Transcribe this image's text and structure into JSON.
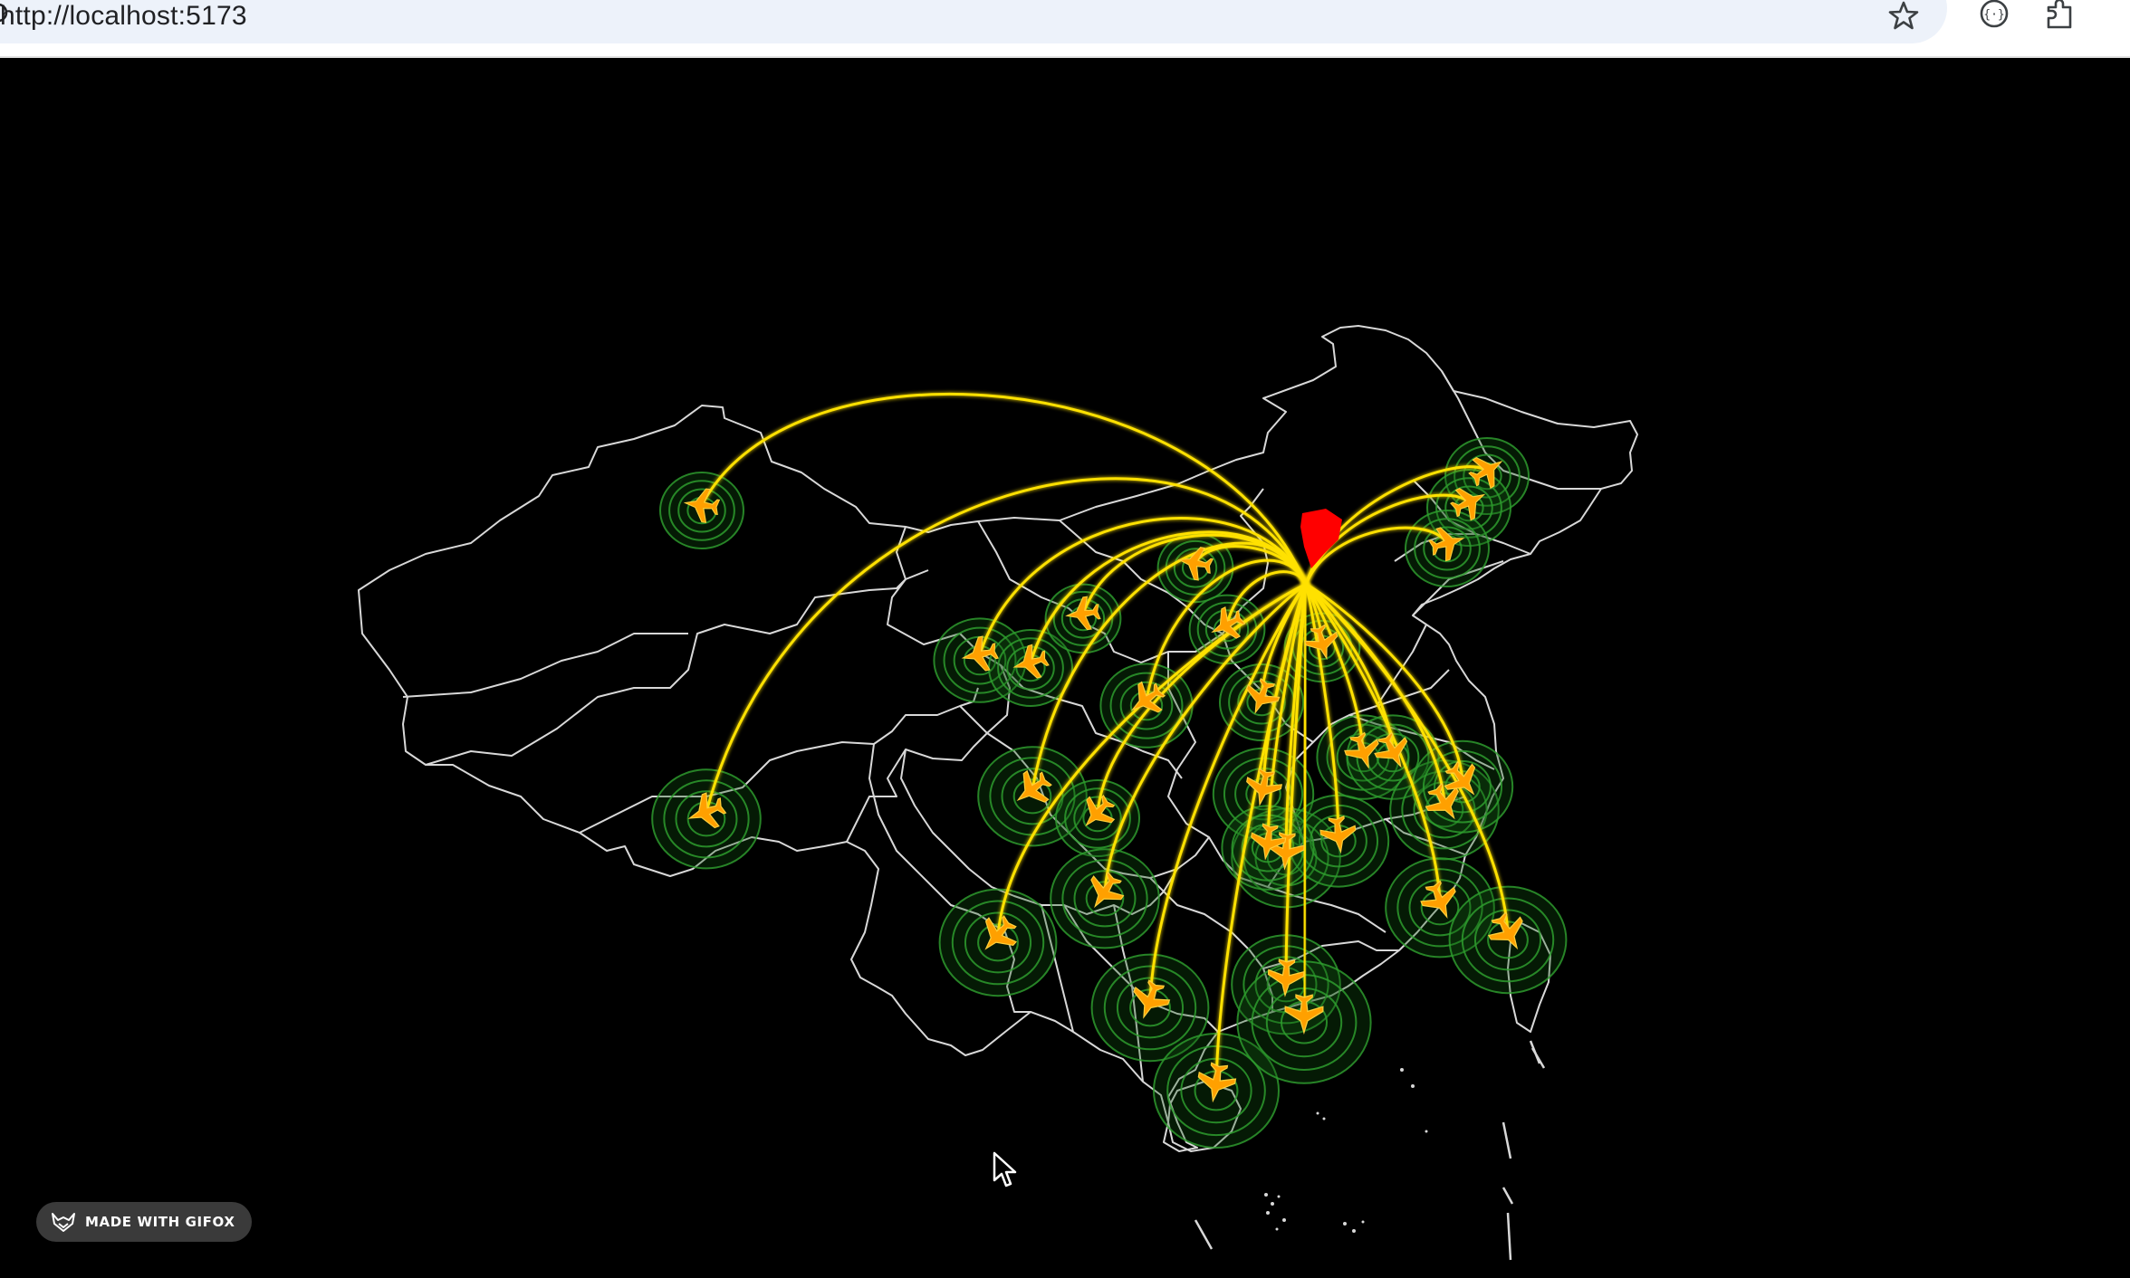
{
  "browser": {
    "url": "http://localhost:5173",
    "icons": [
      "site-info-icon",
      "bookmark-star-icon",
      "devtools-icon",
      "extensions-icon"
    ]
  },
  "map": {
    "type": "flight-lines",
    "colors": {
      "background": "#000000",
      "border": "#d8d8d8",
      "arc": "#ffe100",
      "plane": "#ffa000",
      "ripple": "#2e9c2e",
      "origin_marker": "#ff0000"
    },
    "origin": "origin-pin",
    "destination_count": 31
  },
  "badge": {
    "label": "MADE WITH GIFOX"
  }
}
